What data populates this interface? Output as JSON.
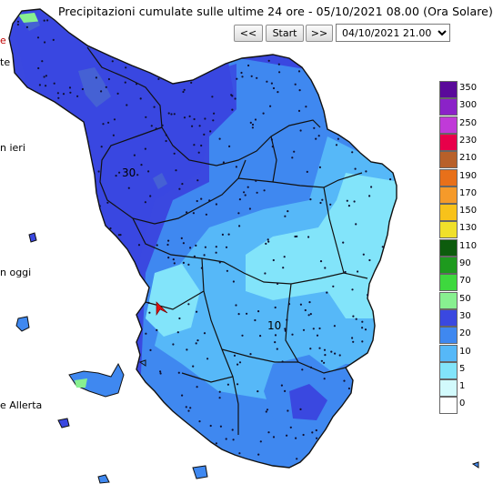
{
  "header": {
    "title": "Precipitazioni cumulate sulle ultime 24 ore - 05/10/2021 08.00 (Ora Solare)"
  },
  "controls": {
    "prev_label": "<<",
    "start_label": "Start",
    "next_label": ">>",
    "selected_time": "04/10/2021 21.00"
  },
  "sidebar": {
    "text_top": "e",
    "text_2": "te",
    "text_ieri": "n ieri",
    "text_oggi": "n oggi",
    "text_allerta": "e Allerta"
  },
  "map": {
    "contour_labels": [
      "30",
      "10"
    ]
  },
  "legend": {
    "levels": [
      {
        "label": "350",
        "color": "#5a0a9a"
      },
      {
        "label": "300",
        "color": "#8b22c8"
      },
      {
        "label": "250",
        "color": "#c03ad8"
      },
      {
        "label": "230",
        "color": "#e8004a"
      },
      {
        "label": "210",
        "color": "#b8602a"
      },
      {
        "label": "190",
        "color": "#e8701a"
      },
      {
        "label": "170",
        "color": "#f59a2a"
      },
      {
        "label": "150",
        "color": "#f8c21a"
      },
      {
        "label": "130",
        "color": "#f0e02a"
      },
      {
        "label": "110",
        "color": "#0d5c0d"
      },
      {
        "label": "90",
        "color": "#1e9a1e"
      },
      {
        "label": "70",
        "color": "#3ed83e"
      },
      {
        "label": "50",
        "color": "#88f090"
      },
      {
        "label": "30",
        "color": "#3a48e0"
      },
      {
        "label": "20",
        "color": "#3f88f0"
      },
      {
        "label": "10",
        "color": "#56b8f8"
      },
      {
        "label": "5",
        "color": "#82e4fa"
      },
      {
        "label": "1",
        "color": "#d2fafc"
      },
      {
        "label": "0",
        "color": "#ffffff"
      }
    ]
  }
}
